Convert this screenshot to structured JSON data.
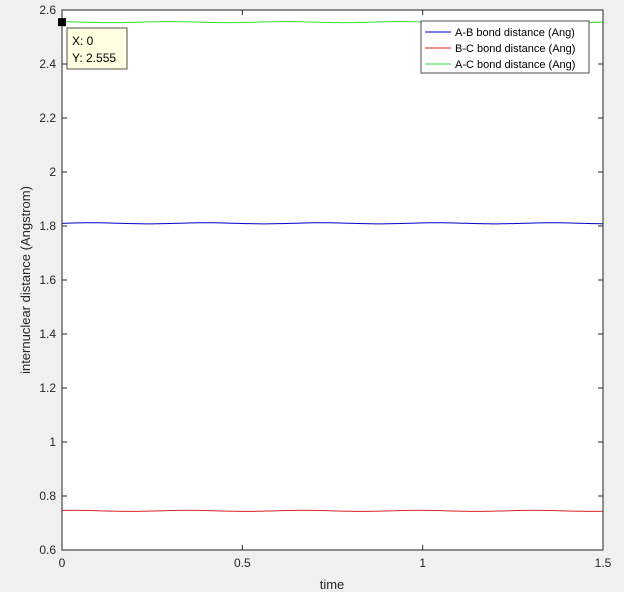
{
  "chart_data": {
    "type": "line",
    "title": "",
    "xlabel": "time",
    "ylabel": "internuclear distance (Angstrom)",
    "xlim": [
      0,
      1.5
    ],
    "ylim": [
      0.6,
      2.6
    ],
    "xticks": [
      0,
      0.5,
      1,
      1.5
    ],
    "xtick_labels": [
      "0",
      "0.5",
      "1",
      "1.5"
    ],
    "yticks": [
      0.6,
      0.8,
      1.0,
      1.2,
      1.4,
      1.6,
      1.8,
      2.0,
      2.2,
      2.4,
      2.6
    ],
    "ytick_labels": [
      "0.6",
      "0.8",
      "1",
      "1.2",
      "1.4",
      "1.6",
      "1.8",
      "2",
      "2.2",
      "2.4",
      "2.6"
    ],
    "grid": false,
    "legend_position": "top-right",
    "series": [
      {
        "name": "A-B bond distance (Ang)",
        "color": "#0000cc",
        "mean": 1.81,
        "amplitude": 0.002
      },
      {
        "name": "B-C bond distance (Ang)",
        "color": "#dd2222",
        "mean": 0.745,
        "amplitude": 0.002
      },
      {
        "name": "A-C bond distance (Ang)",
        "color": "#33dd33",
        "mean": 2.555,
        "amplitude": 0.002
      }
    ],
    "datatip": {
      "x_text": "X: 0",
      "y_text": "Y: 2.555",
      "x": 0,
      "y": 2.555
    }
  }
}
